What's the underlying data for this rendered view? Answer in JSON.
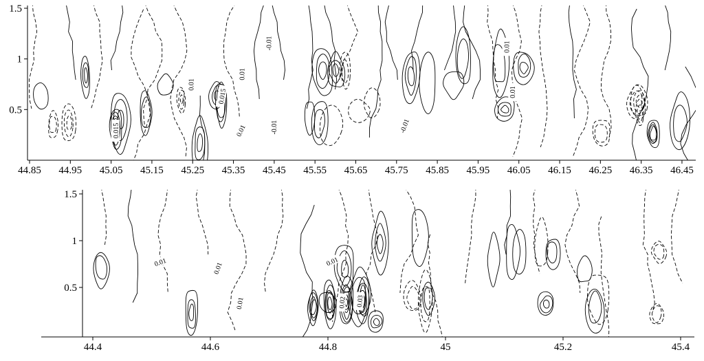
{
  "figure": {
    "background": "#ffffff",
    "line_color": "#000000"
  },
  "chart_data": [
    {
      "type": "contour",
      "panel": "top",
      "title": "",
      "xlabel": "",
      "ylabel": "",
      "xlim": [
        44.85,
        46.45
      ],
      "ylim": [
        0,
        1.5
      ],
      "x_ticks": [
        "44.85",
        "44.95",
        "45.05",
        "45.15",
        "45.25",
        "45.35",
        "45.45",
        "45.55",
        "45.65",
        "45.75",
        "45.85",
        "45.95",
        "46.05",
        "46.15",
        "46.25",
        "46.35",
        "46.45"
      ],
      "y_ticks": [
        "1.5",
        "1",
        "0.5"
      ],
      "line_styles": {
        "solid": "positive contour levels",
        "dashed": "negative contour levels"
      },
      "contour_labels": [
        {
          "text": "0.015",
          "fx": 0.132,
          "fy": 0.809,
          "rot": -90
        },
        {
          "text": "0.01",
          "fx": 0.245,
          "fy": 0.511,
          "rot": -90
        },
        {
          "text": "0.015",
          "fx": 0.291,
          "fy": 0.587,
          "rot": -80
        },
        {
          "text": "0.01",
          "fx": 0.321,
          "fy": 0.444,
          "rot": -90
        },
        {
          "text": "-0.01",
          "fx": 0.361,
          "fy": 0.244,
          "rot": -90
        },
        {
          "text": "0.01",
          "fx": 0.319,
          "fy": 0.809,
          "rot": -65
        },
        {
          "text": "-0.01",
          "fx": 0.369,
          "fy": 0.787,
          "rot": -90
        },
        {
          "text": "-0.01",
          "fx": 0.564,
          "fy": 0.778,
          "rot": -70
        },
        {
          "text": "0.01",
          "fx": 0.717,
          "fy": 0.267,
          "rot": -90
        },
        {
          "text": "0.01",
          "fx": 0.726,
          "fy": 0.56,
          "rot": -90
        }
      ]
    },
    {
      "type": "contour",
      "panel": "bottom",
      "title": "",
      "xlabel": "",
      "ylabel": "",
      "xlim": [
        44.4,
        45.4
      ],
      "ylim": [
        0,
        1.5
      ],
      "x_ticks": [
        "44.4",
        "44.6",
        "44.8",
        "45",
        "45.2",
        "45.4"
      ],
      "y_ticks": [
        "1.5",
        "1",
        "0.5"
      ],
      "line_styles": {
        "solid": "positive contour levels",
        "dashed": "negative contour levels"
      },
      "contour_labels": [
        {
          "text": "0.01",
          "fx": 0.127,
          "fy": 0.491,
          "rot": -20
        },
        {
          "text": "0.01",
          "fx": 0.221,
          "fy": 0.533,
          "rot": -70
        },
        {
          "text": "0.01",
          "fx": 0.257,
          "fy": 0.771,
          "rot": -80
        },
        {
          "text": "0.01",
          "fx": 0.408,
          "fy": 0.486,
          "rot": -25
        },
        {
          "text": "0.02",
          "fx": 0.424,
          "fy": 0.766,
          "rot": -85
        },
        {
          "text": "0.03",
          "fx": 0.453,
          "fy": 0.757,
          "rot": -85
        }
      ]
    }
  ]
}
